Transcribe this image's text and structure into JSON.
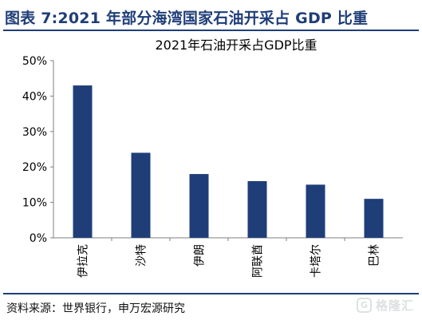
{
  "figure_title": "图表 7:2021 年部分海湾国家石油开采占 GDP 比重",
  "source": "资料来源：世界银行，申万宏源研究",
  "watermark": {
    "icon": "G",
    "text": "格隆汇"
  },
  "colors": {
    "accent": "#1f3e78",
    "bar": "#1f3e78",
    "axis": "#7f7f7f",
    "text": "#000000"
  },
  "chart_data": {
    "type": "bar",
    "title": "2021年石油开采占GDP比重",
    "xlabel": "",
    "ylabel": "",
    "categories": [
      "伊拉克",
      "沙特",
      "伊朗",
      "阿联酋",
      "卡塔尔",
      "巴林"
    ],
    "values": [
      43,
      24,
      18,
      16,
      15,
      11
    ],
    "ylim": [
      0,
      50
    ],
    "yticks": [
      0,
      10,
      20,
      30,
      40,
      50
    ],
    "ytick_labels": [
      "0%",
      "10%",
      "20%",
      "30%",
      "40%",
      "50%"
    ],
    "grid": false,
    "legend": "none",
    "xtick_rotation": "vertical"
  }
}
